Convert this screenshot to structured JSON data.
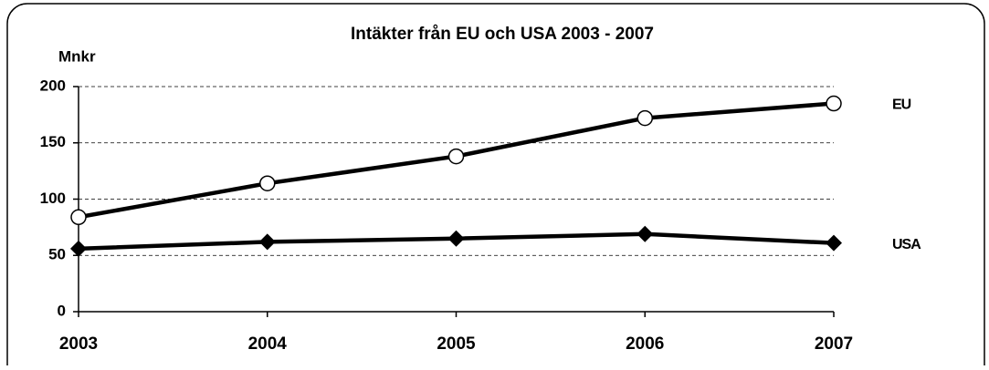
{
  "chart_data": {
    "type": "line",
    "title": "Intäkter från EU och USA 2003 - 2007",
    "ylabel": "Mnkr",
    "categories": [
      "2003",
      "2004",
      "2005",
      "2006",
      "2007"
    ],
    "series": [
      {
        "name": "EU",
        "color": "#000000",
        "marker": "circle",
        "values": [
          84,
          114,
          138,
          172,
          185
        ]
      },
      {
        "name": "USA",
        "color": "#000000",
        "marker": "diamond",
        "values": [
          56,
          62,
          65,
          69,
          61
        ]
      }
    ],
    "ylim": [
      0,
      200
    ],
    "yticks": [
      0,
      50,
      100,
      150,
      200
    ],
    "grid": true
  }
}
